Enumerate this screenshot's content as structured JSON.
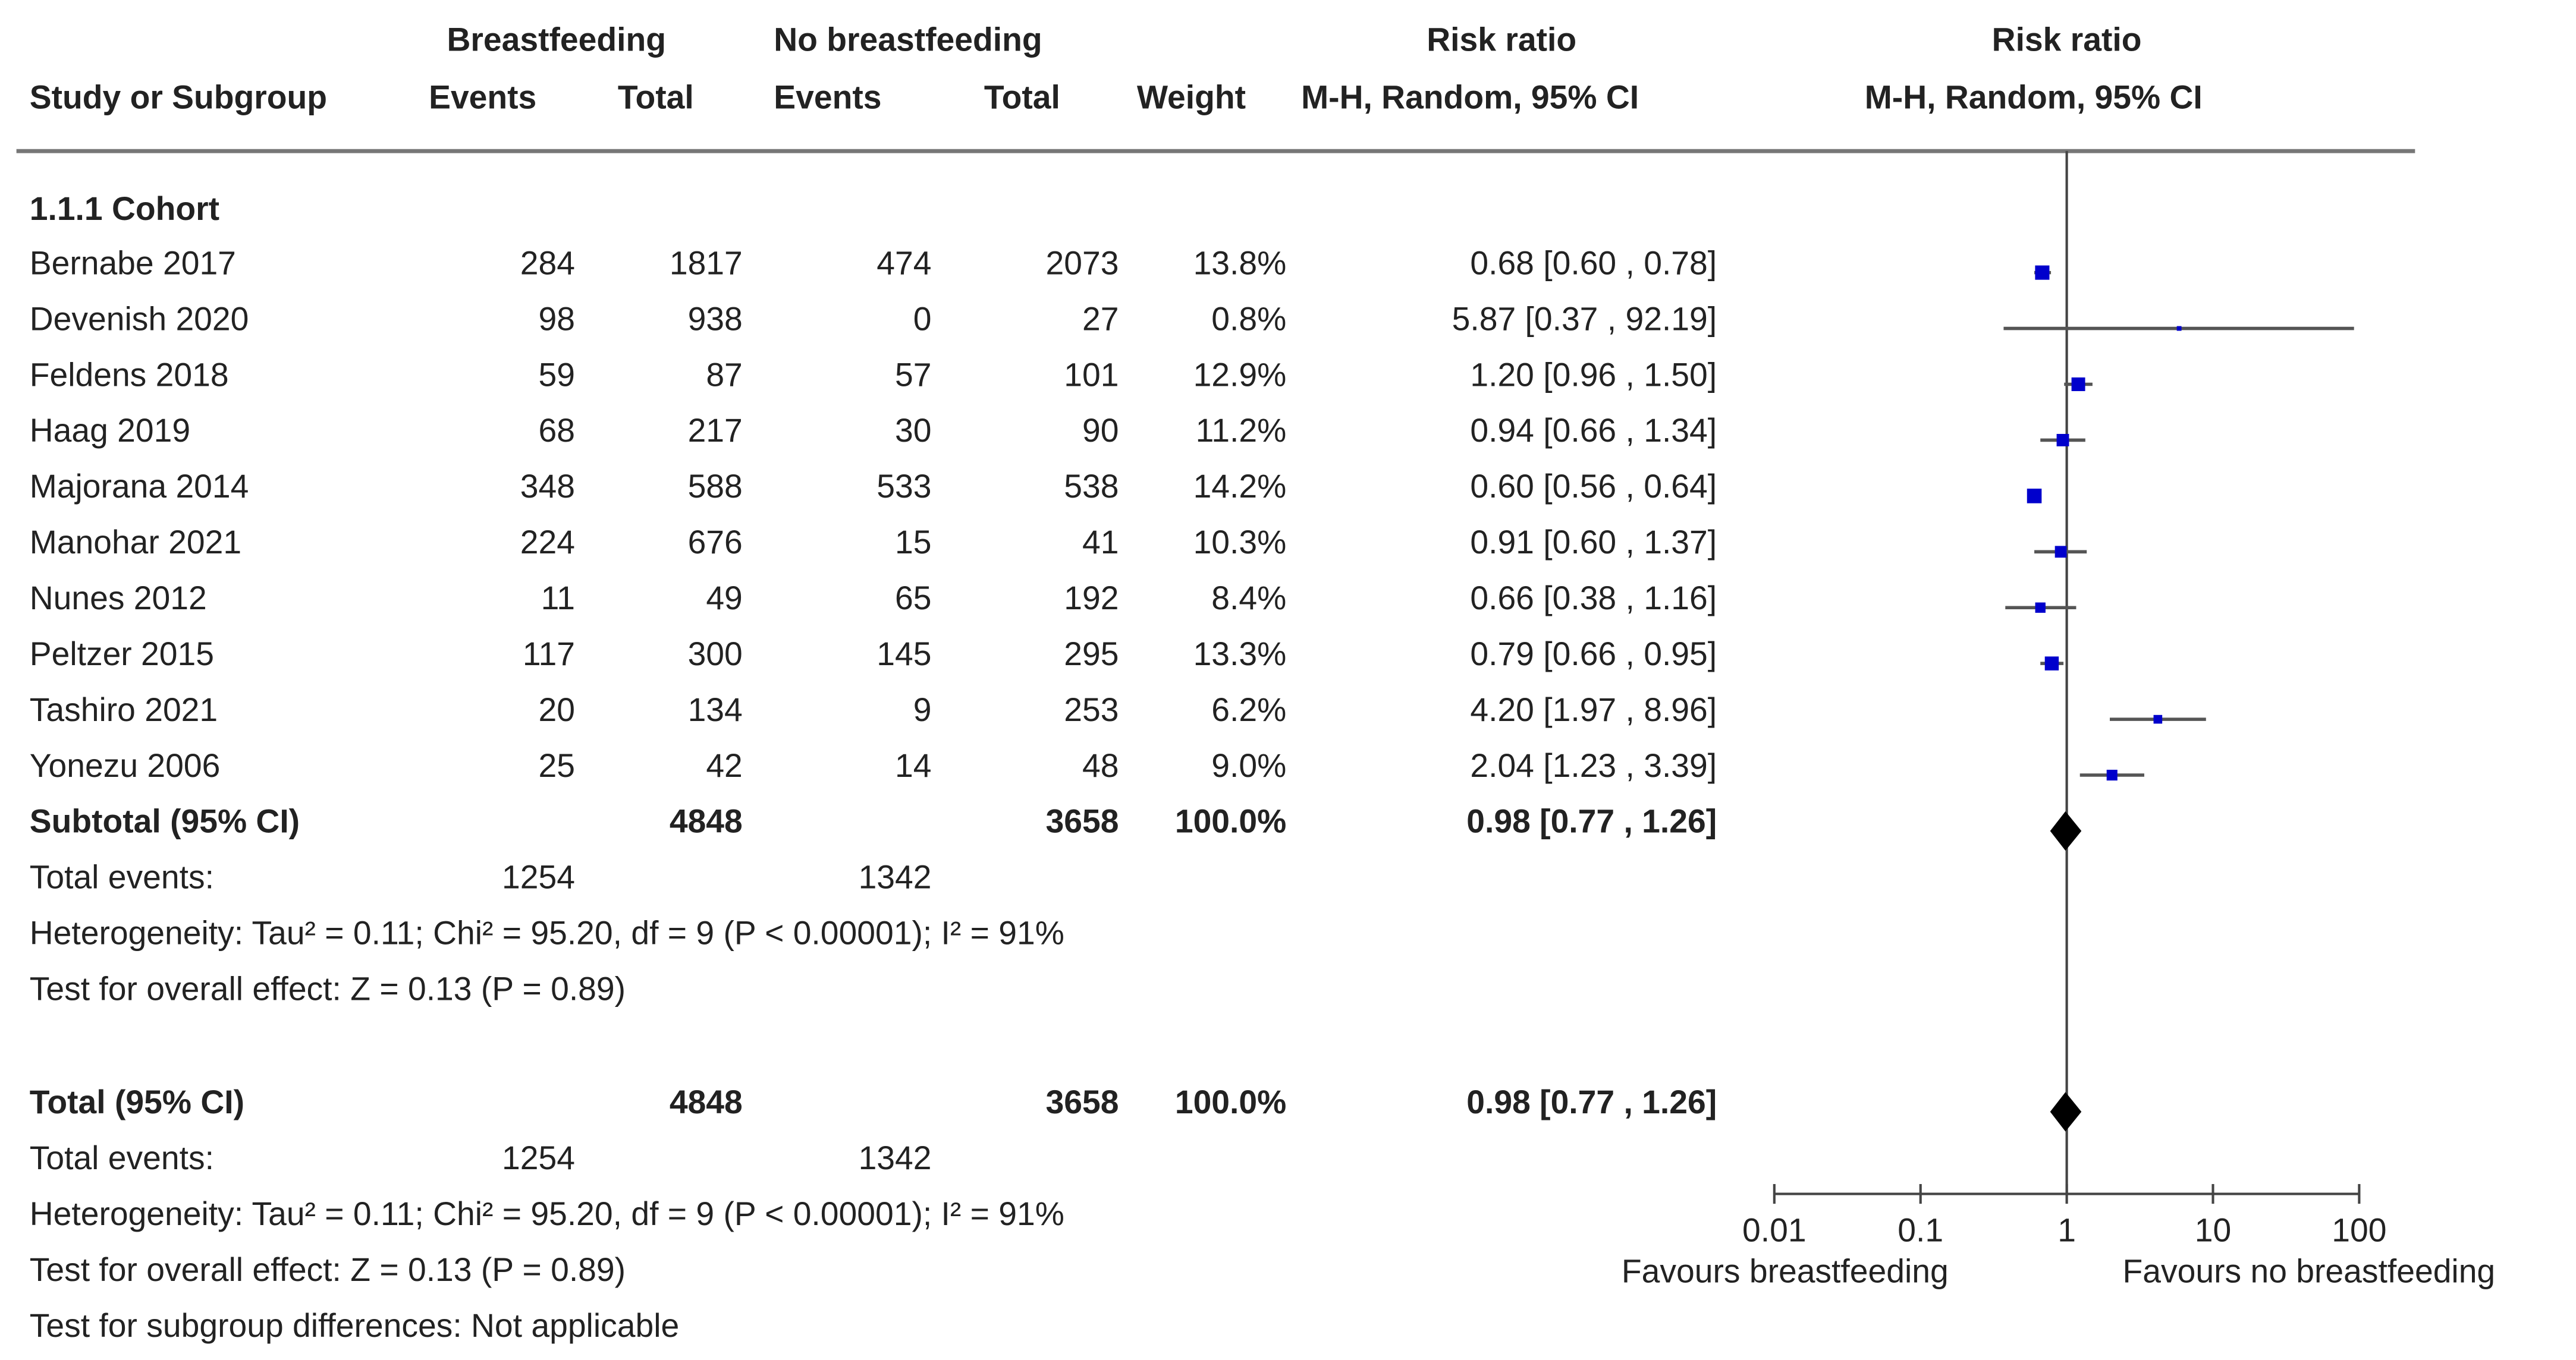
{
  "chart_data": {
    "type": "forest",
    "headers": {
      "group1": "Breastfeeding",
      "group2": "No breastfeeding",
      "rr_col": "Risk ratio",
      "rr_method": "M-H, Random, 95% CI",
      "plot_title": "Risk ratio",
      "plot_method": "M-H, Random, 95% CI",
      "study": "Study or Subgroup",
      "events": "Events",
      "total": "Total",
      "weight": "Weight"
    },
    "subgroup_title": "1.1.1 Cohort",
    "studies": [
      {
        "name": "Bernabe 2017",
        "e1": "284",
        "n1": "1817",
        "e2": "474",
        "n2": "2073",
        "weight": "13.8%",
        "ci_text": "0.68 [0.60 , 0.78]",
        "rr": 0.68,
        "lo": 0.6,
        "hi": 0.78,
        "w": 13.8
      },
      {
        "name": "Devenish 2020",
        "e1": "98",
        "n1": "938",
        "e2": "0",
        "n2": "27",
        "weight": "0.8%",
        "ci_text": "5.87 [0.37 , 92.19]",
        "rr": 5.87,
        "lo": 0.37,
        "hi": 92.19,
        "w": 0.8
      },
      {
        "name": "Feldens 2018",
        "e1": "59",
        "n1": "87",
        "e2": "57",
        "n2": "101",
        "weight": "12.9%",
        "ci_text": "1.20 [0.96 , 1.50]",
        "rr": 1.2,
        "lo": 0.96,
        "hi": 1.5,
        "w": 12.9
      },
      {
        "name": "Haag 2019",
        "e1": "68",
        "n1": "217",
        "e2": "30",
        "n2": "90",
        "weight": "11.2%",
        "ci_text": "0.94 [0.66 , 1.34]",
        "rr": 0.94,
        "lo": 0.66,
        "hi": 1.34,
        "w": 11.2
      },
      {
        "name": "Majorana 2014",
        "e1": "348",
        "n1": "588",
        "e2": "533",
        "n2": "538",
        "weight": "14.2%",
        "ci_text": "0.60 [0.56 , 0.64]",
        "rr": 0.6,
        "lo": 0.56,
        "hi": 0.64,
        "w": 14.2
      },
      {
        "name": "Manohar 2021",
        "e1": "224",
        "n1": "676",
        "e2": "15",
        "n2": "41",
        "weight": "10.3%",
        "ci_text": "0.91 [0.60 , 1.37]",
        "rr": 0.91,
        "lo": 0.6,
        "hi": 1.37,
        "w": 10.3
      },
      {
        "name": "Nunes 2012",
        "e1": "11",
        "n1": "49",
        "e2": "65",
        "n2": "192",
        "weight": "8.4%",
        "ci_text": "0.66 [0.38 , 1.16]",
        "rr": 0.66,
        "lo": 0.38,
        "hi": 1.16,
        "w": 8.4
      },
      {
        "name": "Peltzer 2015",
        "e1": "117",
        "n1": "300",
        "e2": "145",
        "n2": "295",
        "weight": "13.3%",
        "ci_text": "0.79 [0.66 , 0.95]",
        "rr": 0.79,
        "lo": 0.66,
        "hi": 0.95,
        "w": 13.3
      },
      {
        "name": "Tashiro 2021",
        "e1": "20",
        "n1": "134",
        "e2": "9",
        "n2": "253",
        "weight": "6.2%",
        "ci_text": "4.20 [1.97 , 8.96]",
        "rr": 4.2,
        "lo": 1.97,
        "hi": 8.96,
        "w": 6.2
      },
      {
        "name": "Yonezu 2006",
        "e1": "25",
        "n1": "42",
        "e2": "14",
        "n2": "48",
        "weight": "9.0%",
        "ci_text": "2.04 [1.23 , 3.39]",
        "rr": 2.04,
        "lo": 1.23,
        "hi": 3.39,
        "w": 9.0
      }
    ],
    "subtotal": {
      "label": "Subtotal (95% CI)",
      "n1": "4848",
      "n2": "3658",
      "weight": "100.0%",
      "ci_text": "0.98 [0.77 , 1.26]",
      "rr": 0.98,
      "lo": 0.77,
      "hi": 1.26,
      "events_label": "Total events:",
      "e1": "1254",
      "e2": "1342",
      "heterogeneity": "Heterogeneity: Tau² = 0.11; Chi² = 95.20, df = 9 (P < 0.00001); I² = 91%",
      "overall": "Test for overall effect: Z = 0.13 (P = 0.89)"
    },
    "total": {
      "label": "Total (95% CI)",
      "n1": "4848",
      "n2": "3658",
      "weight": "100.0%",
      "ci_text": "0.98 [0.77 , 1.26]",
      "rr": 0.98,
      "lo": 0.77,
      "hi": 1.26,
      "events_label": "Total events:",
      "e1": "1254",
      "e2": "1342",
      "heterogeneity": "Heterogeneity: Tau² = 0.11; Chi² = 95.20, df = 9 (P < 0.00001); I² = 91%",
      "overall": "Test for overall effect: Z = 0.13 (P = 0.89)",
      "subgroup_diff": "Test for subgroup differences: Not applicable"
    },
    "x_axis": {
      "scale": "log",
      "range": [
        0.01,
        100
      ],
      "ticks": [
        "0.01",
        "0.1",
        "1",
        "10",
        "100"
      ]
    },
    "favours_left": "Favours breastfeeding",
    "favours_right": "Favours no breastfeeding",
    "colors": {
      "point": "#0000cc",
      "line": "#555555",
      "diamond": "#000000"
    }
  }
}
